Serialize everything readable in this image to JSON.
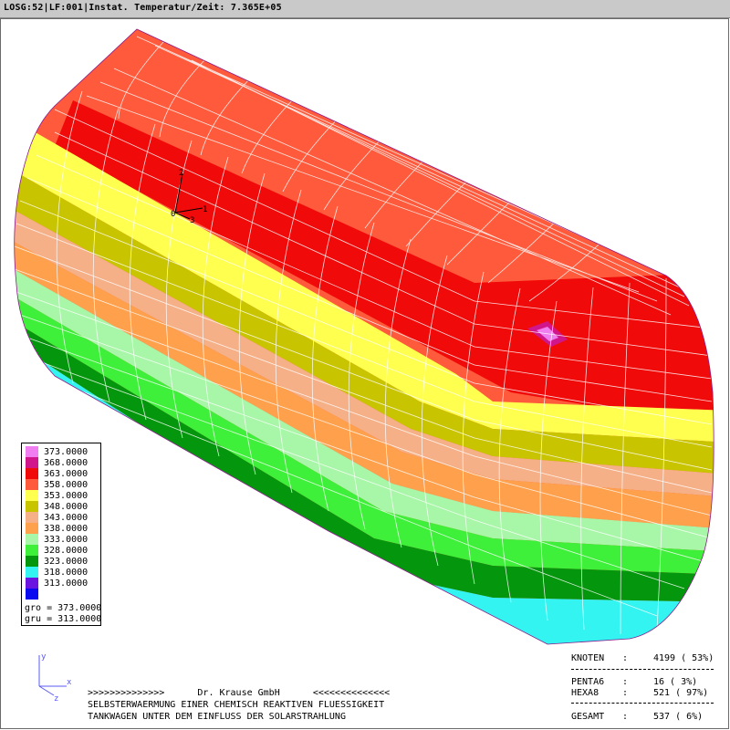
{
  "window": {
    "title": "LOSG:52|LF:001|Instat. Temperatur/Zeit: 7.365E+05"
  },
  "legend": {
    "entries": [
      {
        "value": "373.0000",
        "color": "#f07ef0"
      },
      {
        "value": "368.0000",
        "color": "#d0168a"
      },
      {
        "value": "363.0000",
        "color": "#f00a0a"
      },
      {
        "value": "358.0000",
        "color": "#ff5a3c"
      },
      {
        "value": "353.0000",
        "color": "#ffff50"
      },
      {
        "value": "348.0000",
        "color": "#c8c400"
      },
      {
        "value": "343.0000",
        "color": "#f6b088"
      },
      {
        "value": "338.0000",
        "color": "#ffa04c"
      },
      {
        "value": "333.0000",
        "color": "#a8f6a8"
      },
      {
        "value": "328.0000",
        "color": "#3ef03a"
      },
      {
        "value": "323.0000",
        "color": "#04960c"
      },
      {
        "value": "318.0000",
        "color": "#34f4f2"
      },
      {
        "value": "313.0000",
        "color": "#6a16e0"
      },
      {
        "value": "",
        "color": "#0a0af0"
      }
    ],
    "gro": "gro = 373.0000",
    "gru": "gru = 313.0000"
  },
  "triad": {
    "label1": "1",
    "label2": "2",
    "label3": "3",
    "origin": "0"
  },
  "view_axis": {
    "x": "x",
    "y": "y",
    "z": "z"
  },
  "caption": {
    "line1": ">>>>>>>>>>>>>>      Dr. Krause GmbH      <<<<<<<<<<<<<<",
    "line2": "SELBSTERWAERMUNG EINER CHEMISCH REAKTIVEN FLUESSIGKEIT",
    "line3": "TANKWAGEN UNTER DEM EINFLUSS DER SOLARSTRAHLUNG"
  },
  "stats": {
    "knoten_label": "KNOTEN",
    "knoten_value": "4199 ( 53%)",
    "penta_label": "PENTA6",
    "penta_value": "16 (  3%)",
    "hexa_label": "HEXA8",
    "hexa_value": "521 ( 97%)",
    "gesamt_label": "GESAMT",
    "gesamt_value": "537 (  6%)"
  }
}
